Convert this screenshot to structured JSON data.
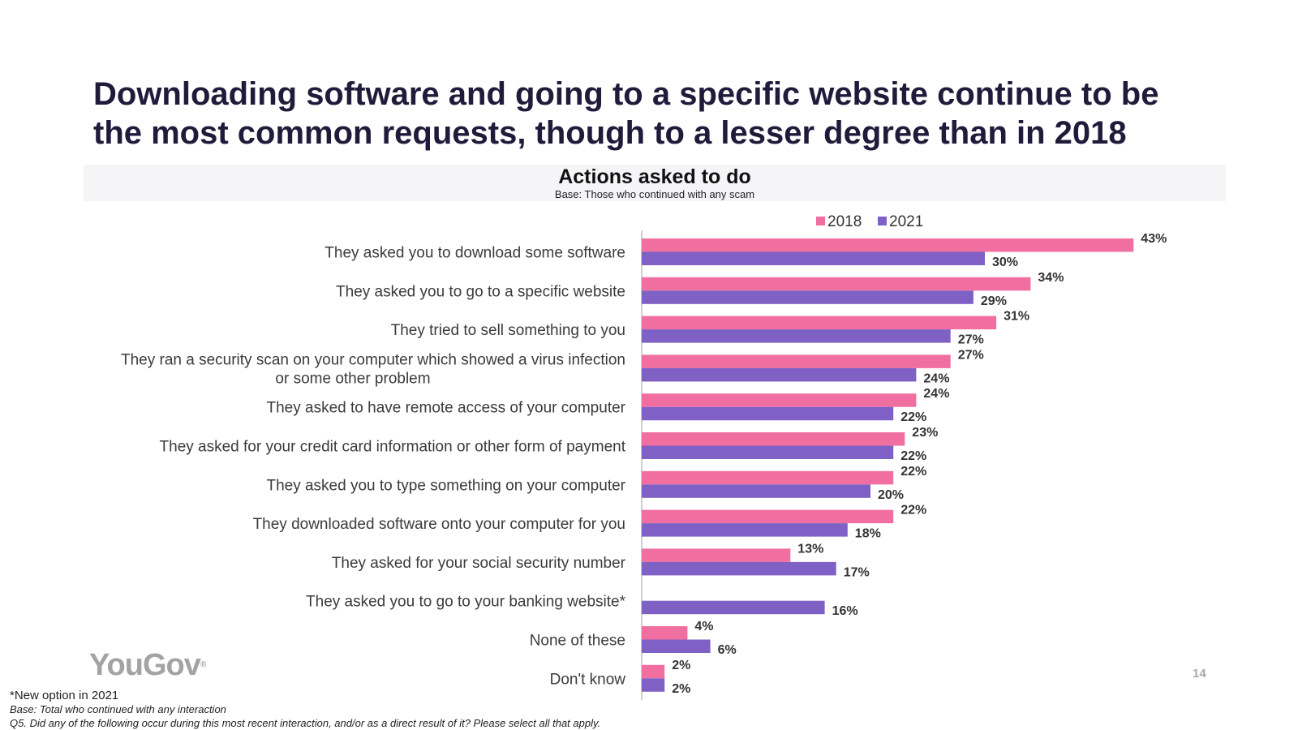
{
  "slide": {
    "headline": "Downloading software and going to a specific website continue to be the most common requests, though to a lesser degree than in 2018",
    "chart_title": "Actions asked to do",
    "chart_base": "Base: Those who continued with any scam",
    "logo": "YouGov",
    "logo_mark": "®",
    "page_number": "14",
    "footnote_new": "*New option in 2021",
    "footnote_base": "Base: Total who continued with any interaction",
    "footnote_question": "Q5. Did any of the following occur during this most recent interaction, and/or as a direct result of it? Please select all that apply."
  },
  "colors": {
    "series_2018": "#f06fa0",
    "series_2021": "#7f61c6",
    "axis": "#bfbfbf"
  },
  "chart_data": {
    "type": "bar",
    "orientation": "horizontal",
    "title": "Actions asked to do",
    "subtitle": "Base: Those who continued with any scam",
    "value_format": "percent",
    "xlim": [
      0,
      50
    ],
    "legend_position": "top",
    "categories": [
      [
        "They asked you to download some software"
      ],
      [
        "They asked you to go to a specific website"
      ],
      [
        "They tried to sell something to you"
      ],
      [
        "They ran a security scan on your computer which showed a virus infection",
        "or some other problem"
      ],
      [
        "They asked to have remote access of your computer"
      ],
      [
        "They asked for your credit card information or other form of payment"
      ],
      [
        "They asked you to type something on your computer"
      ],
      [
        "They downloaded software onto your computer for you"
      ],
      [
        "They asked for your social security number"
      ],
      [
        "They asked you to go to your banking website*"
      ],
      [
        "None of these"
      ],
      [
        "Don't know"
      ]
    ],
    "series": [
      {
        "name": "2018",
        "values": [
          43,
          34,
          31,
          27,
          24,
          23,
          22,
          22,
          13,
          null,
          4,
          2
        ]
      },
      {
        "name": "2021",
        "values": [
          30,
          29,
          27,
          24,
          22,
          22,
          20,
          18,
          17,
          16,
          6,
          2
        ]
      }
    ]
  }
}
